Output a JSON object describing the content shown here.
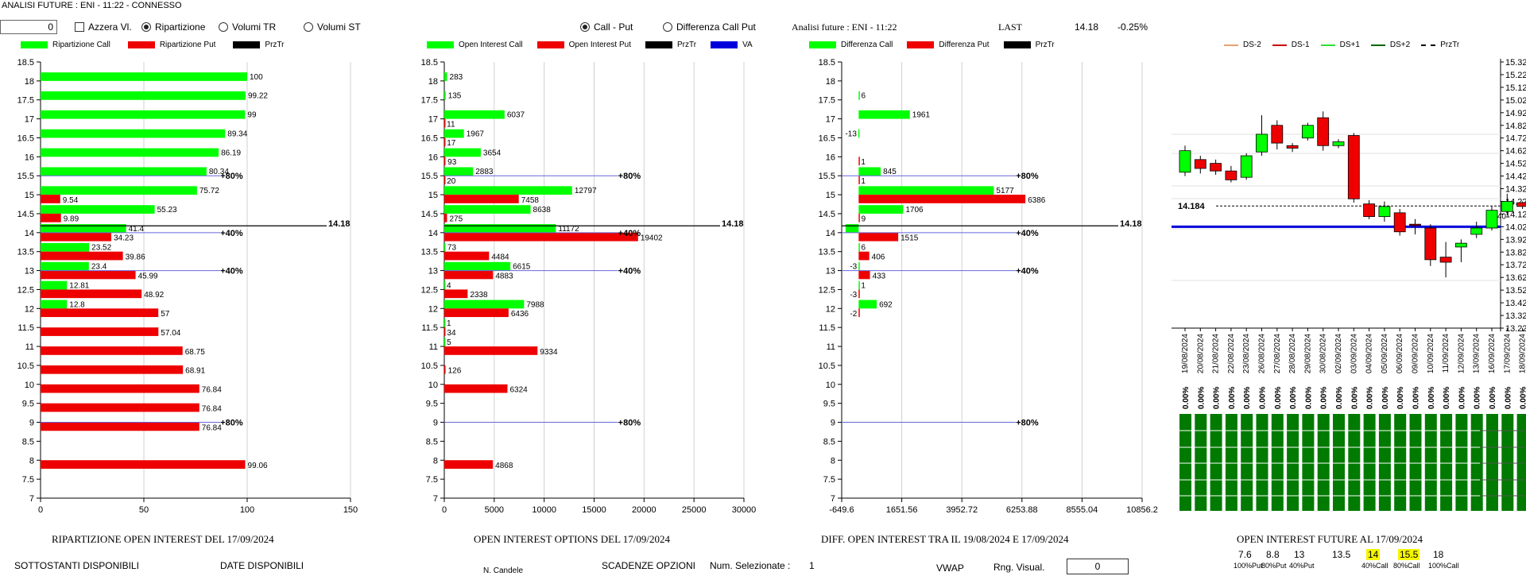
{
  "window_title": "ANALISI FUTURE : ENI - 11:22 - CONNESSO",
  "controls": {
    "number_value": "0",
    "azzera_label": "Azzera Vl.",
    "radio1": [
      "Ripartizione",
      "Volumi TR",
      "Volumi ST"
    ],
    "radio1_selected": "Ripartizione",
    "radio2": [
      "Call - Put",
      "Differenza Call Put"
    ],
    "radio2_selected": "Call - Put"
  },
  "header_right": {
    "analysis_label": "Analisi future : ENI - 11:22",
    "last_label": "LAST",
    "last_value": "14.18",
    "change": "-0.25%"
  },
  "colors": {
    "green": "#00ff00",
    "red": "#ee0000",
    "blue": "#0000dd",
    "dark_green": "#007a00"
  },
  "chart_data": [
    {
      "type": "bar",
      "title": "RIPARTIZIONE OPEN INTEREST DEL 17/09/2024",
      "legend": [
        "Ripartizione Call",
        "Ripartizione Put",
        "PrzTr"
      ],
      "strikes": [
        "18.5",
        "18",
        "17.5",
        "17",
        "16.5",
        "16",
        "15.5",
        "15",
        "14.5",
        "14",
        "13.5",
        "13",
        "12.5",
        "12",
        "11.5",
        "11",
        "10.5",
        "10",
        "9.5",
        "9",
        "8.5",
        "8",
        "7.5",
        "7"
      ],
      "call": {
        "18": 100,
        "17.5": 99.22,
        "17": 99,
        "16.5": 89.34,
        "16": 86.19,
        "15.5": 80.34,
        "15": 75.72,
        "14.5": 55.23,
        "14": 41.4,
        "13.5": 23.52,
        "13": 23.4,
        "12.5": 12.81,
        "12": 12.8
      },
      "put": {
        "15": 9.54,
        "14.5": 9.89,
        "14": 34.23,
        "13.5": 39.86,
        "13": 45.99,
        "12.5": 48.92,
        "12": 57,
        "11.5": 57.04,
        "11": 68.75,
        "10.5": 68.91,
        "10": 76.84,
        "9.5": 76.84,
        "9": 76.84,
        "8": 99.06
      },
      "xticks": [
        "0",
        "50",
        "100",
        "150"
      ],
      "xlim": [
        0,
        150
      ],
      "markers": [
        {
          "strike": "15.5",
          "label": "80%"
        },
        {
          "strike": "14",
          "label": "40%"
        },
        {
          "strike": "13",
          "label": "40%"
        },
        {
          "strike": "9",
          "label": "80%"
        }
      ],
      "price_line": {
        "strike": 14.18,
        "label": "14.18"
      }
    },
    {
      "type": "bar",
      "title": "OPEN INTEREST OPTIONS DEL 17/09/2024",
      "legend": [
        "Open Interest Call",
        "Open Interest Put",
        "PrzTr",
        "VA"
      ],
      "strikes": [
        "18.5",
        "18",
        "17.5",
        "17",
        "16.5",
        "16",
        "15.5",
        "15",
        "14.5",
        "14",
        "13.5",
        "13",
        "12.5",
        "12",
        "11.5",
        "11",
        "10.5",
        "10",
        "9.5",
        "9",
        "8.5",
        "8",
        "7.5",
        "7"
      ],
      "call": {
        "18": 283,
        "17.5": 135,
        "17": 6037,
        "16.5": 1967,
        "16": 3654,
        "15.5": 2883,
        "15": 12797,
        "14.5": 8638,
        "14": 11172,
        "13.5": 73,
        "13": 6615,
        "12.5": 4,
        "12": 7988,
        "11.5": 1,
        "11": 5
      },
      "put": {
        "17": 11,
        "16.5": 17,
        "16": 93,
        "15.5": 20,
        "15": 7458,
        "14.5": 275,
        "14": 19402,
        "13.5": 4484,
        "13": 4883,
        "12.5": 2338,
        "12": 6436,
        "11.5": 34,
        "11": 9334,
        "10.5": 126,
        "10": 6324,
        "8": 4868
      },
      "xticks": [
        "0",
        "5000",
        "10000",
        "15000",
        "20000",
        "25000",
        "30000"
      ],
      "xlim": [
        0,
        30000
      ],
      "markers": [
        {
          "strike": "15.5",
          "label": "80%"
        },
        {
          "strike": "14",
          "label": "40%"
        },
        {
          "strike": "13",
          "label": "40%"
        },
        {
          "strike": "9",
          "label": "80%"
        }
      ],
      "price_line": {
        "strike": 14.18,
        "label": "14.18"
      }
    },
    {
      "type": "bar",
      "title": "DIFF. OPEN INTEREST TRA IL 19/08/2024 E 17/09/2024",
      "legend": [
        "Differenza Call",
        "Differenza Put",
        "PrzTr"
      ],
      "strikes": [
        "18.5",
        "18",
        "17.5",
        "17",
        "16.5",
        "16",
        "15.5",
        "15",
        "14.5",
        "14",
        "13.5",
        "13",
        "12.5",
        "12",
        "11.5",
        "11",
        "10.5",
        "10",
        "9.5",
        "9",
        "8.5",
        "8",
        "7.5",
        "7"
      ],
      "call": {
        "17.5": 6,
        "17": 1961,
        "16.5": -13,
        "15.5": 845,
        "15": 5177,
        "14.5": 1706,
        "14": -500,
        "13.5": 6,
        "13": -3,
        "12.5": 1,
        "12": 692
      },
      "put": {
        "16": 1,
        "15.5": 1,
        "15": 6386,
        "14.5": 9,
        "14": 1515,
        "13.5": 406,
        "13": 433,
        "12.5": -3,
        "12": -2
      },
      "call_labels": {
        "17.5": "6",
        "17": "1961",
        "16.5": "-13",
        "15.5": "845",
        "15": "5177",
        "14.5": "1706",
        "13.5": "6",
        "13": "-3",
        "12.5": "1",
        "12": "692"
      },
      "put_labels": {
        "16": "1",
        "15.5": "1",
        "15": "6386",
        "14.5": "9",
        "14": "1515",
        "13.5": "406",
        "13": "433",
        "12.5": "-3",
        "12": "-2"
      },
      "xticks": [
        "-649.6",
        "1651.56",
        "3952.72",
        "6253.88",
        "8555.04",
        "10856.2"
      ],
      "xlim": [
        -649.6,
        10856.2
      ],
      "markers": [
        {
          "strike": "15.5",
          "label": "80%"
        },
        {
          "strike": "14",
          "label": "40%"
        },
        {
          "strike": "13",
          "label": "40%"
        },
        {
          "strike": "9",
          "label": "80%"
        }
      ],
      "price_line": {
        "strike": 14.18,
        "label": "14.18"
      }
    },
    {
      "type": "candlestick",
      "legend": [
        "DS-2",
        "DS-1",
        "DS+1",
        "DS+2",
        "PrzTr"
      ],
      "yticks": [
        "15.32",
        "15.22",
        "15.12",
        "15.02",
        "14.92",
        "14.82",
        "14.72",
        "14.62",
        "14.52",
        "14.42",
        "14.32",
        "14.22",
        "14.12",
        "14.02",
        "13.92",
        "13.82",
        "13.72",
        "13.62",
        "13.52",
        "13.42",
        "13.32",
        "13.22"
      ],
      "ylim": [
        13.22,
        15.32
      ],
      "dates": [
        "19/08/2024",
        "20/08/2024",
        "21/08/2024",
        "22/08/2024",
        "23/08/2024",
        "26/08/2024",
        "27/08/2024",
        "28/08/2024",
        "29/08/2024",
        "30/08/2024",
        "02/09/2024",
        "03/09/2024",
        "04/09/2024",
        "05/09/2024",
        "06/09/2024",
        "09/09/2024",
        "10/09/2024",
        "11/09/2024",
        "12/09/2024",
        "13/09/2024",
        "16/09/2024",
        "17/09/2024",
        "18/09/2024"
      ],
      "candles": [
        {
          "o": 14.45,
          "c": 14.62,
          "h": 14.66,
          "l": 14.42
        },
        {
          "o": 14.55,
          "c": 14.48,
          "h": 14.58,
          "l": 14.44
        },
        {
          "o": 14.52,
          "c": 14.46,
          "h": 14.55,
          "l": 14.43
        },
        {
          "o": 14.46,
          "c": 14.39,
          "h": 14.5,
          "l": 14.37
        },
        {
          "o": 14.41,
          "c": 14.58,
          "h": 14.6,
          "l": 14.39
        },
        {
          "o": 14.61,
          "c": 14.75,
          "h": 14.9,
          "l": 14.58
        },
        {
          "o": 14.82,
          "c": 14.68,
          "h": 14.86,
          "l": 14.63
        },
        {
          "o": 14.66,
          "c": 14.64,
          "h": 14.68,
          "l": 14.61
        },
        {
          "o": 14.72,
          "c": 14.82,
          "h": 14.84,
          "l": 14.7
        },
        {
          "o": 14.88,
          "c": 14.66,
          "h": 14.93,
          "l": 14.62
        },
        {
          "o": 14.66,
          "c": 14.69,
          "h": 14.71,
          "l": 14.64
        },
        {
          "o": 14.74,
          "c": 14.24,
          "h": 14.76,
          "l": 14.21
        },
        {
          "o": 14.2,
          "c": 14.1,
          "h": 14.23,
          "l": 14.08
        },
        {
          "o": 14.1,
          "c": 14.18,
          "h": 14.22,
          "l": 14.06
        },
        {
          "o": 14.13,
          "c": 13.98,
          "h": 14.16,
          "l": 13.95
        },
        {
          "o": 14.04,
          "c": 14.03,
          "h": 14.08,
          "l": 13.96
        },
        {
          "o": 14.01,
          "c": 13.76,
          "h": 14.04,
          "l": 13.71
        },
        {
          "o": 13.78,
          "c": 13.74,
          "h": 13.9,
          "l": 13.62
        },
        {
          "o": 13.86,
          "c": 13.89,
          "h": 13.92,
          "l": 13.74
        },
        {
          "o": 13.96,
          "c": 14.01,
          "h": 14.06,
          "l": 13.93
        },
        {
          "o": 14.01,
          "c": 14.15,
          "h": 14.18,
          "l": 13.99
        },
        {
          "o": 14.14,
          "c": 14.22,
          "h": 14.28,
          "l": 14.11
        },
        {
          "o": 14.21,
          "c": 14.18,
          "h": 14.22,
          "l": 14.16
        }
      ],
      "price_label": "14.184",
      "price": 14.184,
      "va_level": 14.02,
      "side_label": "+40",
      "bar_pct_label": "0.00%",
      "title": "OPEN INTEREST FUTURE AL 17/09/2024"
    }
  ],
  "future_oi_row": [
    {
      "value": "7.6",
      "pct": "100%Put",
      "hl": false
    },
    {
      "value": "8.8",
      "pct": "80%Put",
      "hl": false
    },
    {
      "value": "13",
      "pct": "40%Put",
      "hl": false
    },
    {
      "value": "13.5",
      "pct": "",
      "hl": false
    },
    {
      "value": "14",
      "pct": "40%Call",
      "hl": true
    },
    {
      "value": "15.5",
      "pct": "80%Call",
      "hl": true
    },
    {
      "value": "18",
      "pct": "100%Call",
      "hl": false
    }
  ],
  "footer": {
    "sottostanti": "SOTTOSTANTI DISPONIBILI",
    "date_disp": "DATE DISPONIBILI",
    "n_candele": "N. Candele",
    "scadenze": "SCADENZE OPZIONI",
    "num_sel_label": "Num. Selezionate :",
    "num_sel_value": "1",
    "vwap": "VWAP",
    "rng_label": "Rng. Visual.",
    "rng_value": "0"
  }
}
